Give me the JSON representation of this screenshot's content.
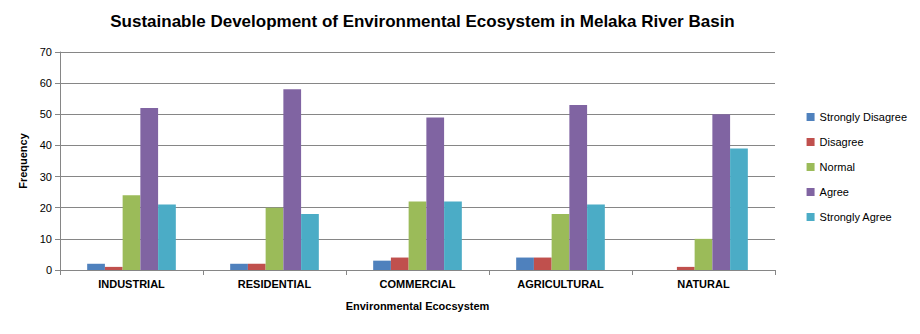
{
  "chart_data": {
    "type": "bar",
    "title": "Sustainable Development of Environmental Ecosystem in Melaka River Basin",
    "x_label": "Environmental Ecocsystem",
    "y_label": "Frequency",
    "categories": [
      "INDUSTRIAL",
      "RESIDENTIAL",
      "COMMERCIAL",
      "AGRICULTURAL",
      "NATURAL"
    ],
    "series": [
      {
        "name": "Strongly Disagree",
        "color": "#4f81bd",
        "values": [
          2,
          2,
          3,
          4,
          0
        ]
      },
      {
        "name": "Disagree",
        "color": "#c0504d",
        "values": [
          1,
          2,
          4,
          4,
          1
        ]
      },
      {
        "name": "Normal",
        "color": "#9bbb59",
        "values": [
          24,
          20,
          22,
          18,
          10
        ]
      },
      {
        "name": "Agree",
        "color": "#8064a2",
        "values": [
          52,
          58,
          49,
          53,
          50
        ]
      },
      {
        "name": "Strongly Agree",
        "color": "#4bacc6",
        "values": [
          21,
          18,
          22,
          21,
          39
        ]
      }
    ],
    "ylim": [
      0,
      70
    ],
    "yticks": [
      0,
      10,
      20,
      30,
      40,
      50,
      60,
      70
    ],
    "grid": true,
    "legend": "right"
  }
}
